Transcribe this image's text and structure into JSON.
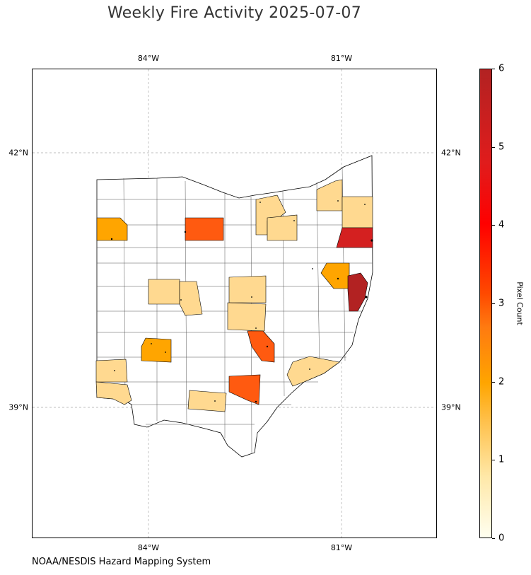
{
  "title": "Weekly Fire Activity 2025-07-07",
  "credit": "NOAA/NESDIS Hazard Mapping System",
  "axes": {
    "longitude_labels": [
      "84°W",
      "81°W"
    ],
    "latitude_labels": [
      "42°N",
      "39°N"
    ]
  },
  "colorbar": {
    "label": "Pixel Count",
    "ticks": [
      "0",
      "1",
      "2",
      "3",
      "4",
      "5",
      "6"
    ],
    "range": [
      0,
      6
    ],
    "colors": [
      "#fffff0",
      "#ffd990",
      "#ffa500",
      "#ff5a10",
      "#ff0000",
      "#d42020",
      "#b22222"
    ]
  },
  "map_data": {
    "region": "Ohio",
    "basemap": "county boundaries",
    "counties_with_fire_pixels": [
      {
        "location": "northwest corner",
        "pixel_count": 2
      },
      {
        "location": "north-central",
        "pixel_count": 3
      },
      {
        "location": "north-central east",
        "pixel_count": 1
      },
      {
        "location": "north-central east 2",
        "pixel_count": 1
      },
      {
        "location": "northeast lakeshore",
        "pixel_count": 1
      },
      {
        "location": "northeast corner",
        "pixel_count": 1
      },
      {
        "location": "northeast border",
        "pixel_count": 5
      },
      {
        "location": "east-central",
        "pixel_count": 2
      },
      {
        "location": "east border",
        "pixel_count": 6
      },
      {
        "location": "west-central",
        "pixel_count": 1
      },
      {
        "location": "west-central 2",
        "pixel_count": 1
      },
      {
        "location": "central",
        "pixel_count": 1
      },
      {
        "location": "central 2",
        "pixel_count": 1
      },
      {
        "location": "central-south",
        "pixel_count": 3
      },
      {
        "location": "southwest-central",
        "pixel_count": 2
      },
      {
        "location": "southwest",
        "pixel_count": 1
      },
      {
        "location": "southwest corner",
        "pixel_count": 1
      },
      {
        "location": "southeast",
        "pixel_count": 1
      },
      {
        "location": "south-central",
        "pixel_count": 3
      },
      {
        "location": "south",
        "pixel_count": 1
      }
    ]
  }
}
